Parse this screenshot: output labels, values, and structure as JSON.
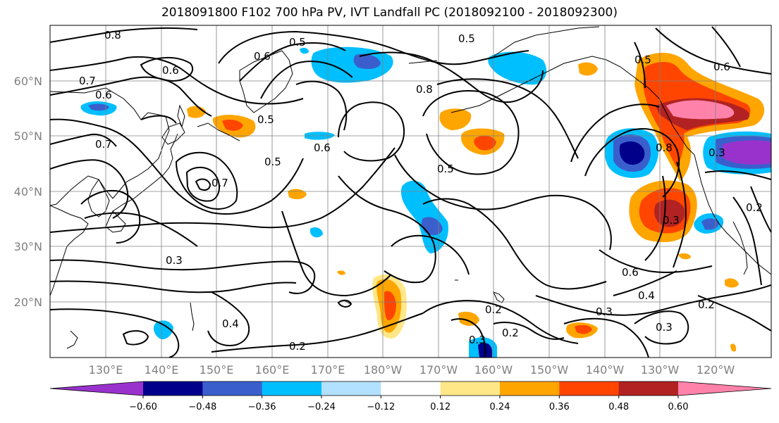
{
  "title": "2018091800 F102 700 hPa PV, IVT Landfall PC (2018092100 - 2018092300)",
  "lat_labels": [
    "60°N",
    "50°N",
    "40°N",
    "30°N",
    "20°N"
  ],
  "lon_labels": [
    "130°E",
    "140°E",
    "150°E",
    "160°E",
    "170°E",
    "180°W",
    "170°W",
    "160°W",
    "150°W",
    "140°W",
    "130°W",
    "120°W"
  ],
  "contour_labels": [
    {
      "text": "0.8"
    },
    {
      "text": "0.7"
    },
    {
      "text": "0.6"
    },
    {
      "text": "0.6"
    },
    {
      "text": "0.6"
    },
    {
      "text": "0.5"
    },
    {
      "text": "0.5"
    },
    {
      "text": "0.5"
    },
    {
      "text": "0.6"
    },
    {
      "text": "0.7"
    },
    {
      "text": "0.7"
    },
    {
      "text": "0.8"
    },
    {
      "text": "0.5"
    },
    {
      "text": "0.5"
    },
    {
      "text": "0.3"
    },
    {
      "text": "0.4"
    },
    {
      "text": "0.2"
    },
    {
      "text": "0.3"
    },
    {
      "text": "0.2"
    },
    {
      "text": "0.2"
    },
    {
      "text": "0.3"
    },
    {
      "text": "0.6"
    },
    {
      "text": "0.4"
    },
    {
      "text": "0.3"
    },
    {
      "text": "0.2"
    },
    {
      "text": "0.3"
    },
    {
      "text": "0.8"
    },
    {
      "text": "0.3"
    },
    {
      "text": "0.2"
    },
    {
      "text": "0.5"
    },
    {
      "text": "0.6"
    }
  ],
  "colorbar": {
    "colors": [
      "#9932cc",
      "#00008b",
      "#3a5fcd",
      "#00bfff",
      "#b2e0ff",
      "#ffffff",
      "#ffe787",
      "#ffa500",
      "#ff4500",
      "#b22222",
      "#ff82ab"
    ],
    "tick_labels": [
      "−0.60",
      "−0.48",
      "−0.36",
      "−0.24",
      "−0.12",
      "0.12",
      "0.24",
      "0.36",
      "0.48",
      "0.60"
    ]
  }
}
